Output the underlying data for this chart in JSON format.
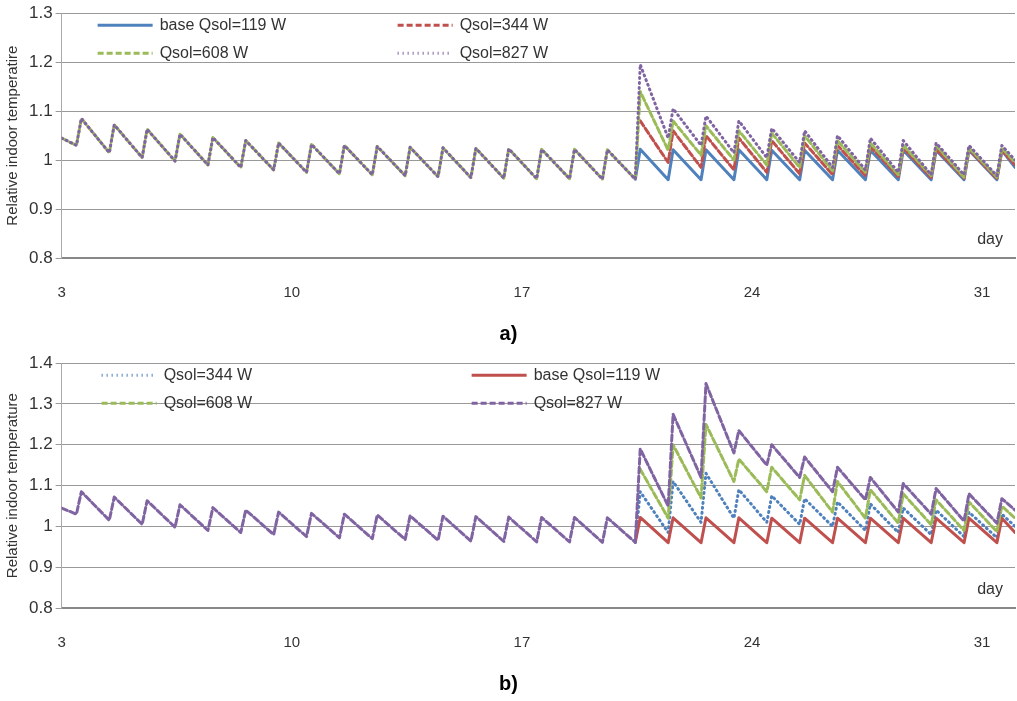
{
  "chart_data": [
    {
      "type": "line",
      "ylabel": "Relative indoor temperatire",
      "xlabel": "day",
      "annotations": [
        "a)"
      ],
      "x": [
        3,
        3.45,
        3.6,
        4.45,
        4.6,
        5.45,
        5.6,
        6.45,
        6.6,
        7.45,
        7.6,
        8.45,
        8.6,
        9.45,
        9.6,
        10.45,
        10.6,
        11.45,
        11.6,
        12.45,
        12.6,
        13.45,
        13.6,
        14.45,
        14.6,
        15.45,
        15.6,
        16.45,
        16.6,
        17.45,
        17.6,
        18.45,
        18.6,
        19.45,
        19.6,
        20.45,
        20.6,
        21.45,
        21.6,
        22.45,
        22.6,
        23.45,
        23.6,
        24.45,
        24.6,
        25.45,
        25.6,
        26.45,
        26.6,
        27.45,
        27.6,
        28.45,
        28.6,
        29.45,
        29.6,
        30.45,
        30.6,
        31.45,
        31.6,
        32
      ],
      "series": [
        {
          "name": "base Qsol=119 W",
          "color": "#4f81bd",
          "line_style": "solid",
          "values": [
            null,
            null,
            null,
            null,
            null,
            null,
            null,
            null,
            null,
            null,
            null,
            null,
            null,
            null,
            null,
            null,
            null,
            null,
            null,
            null,
            null,
            null,
            null,
            null,
            null,
            null,
            null,
            null,
            null,
            null,
            null,
            null,
            null,
            null,
            null,
            0.961,
            1.022,
            0.96,
            1.021,
            0.96,
            1.021,
            0.96,
            1.021,
            0.96,
            1.02,
            0.96,
            1.02,
            0.96,
            1.02,
            0.96,
            1.02,
            0.96,
            1.02,
            0.96,
            1.02,
            0.96,
            1.02,
            0.96,
            1.02,
            0.985
          ]
        },
        {
          "name": "Qsol=344 W",
          "color": "#c0504d",
          "line_style": "dashed",
          "values": [
            null,
            null,
            null,
            null,
            null,
            null,
            null,
            null,
            null,
            null,
            null,
            null,
            null,
            null,
            null,
            null,
            null,
            null,
            null,
            null,
            null,
            null,
            null,
            null,
            null,
            null,
            null,
            null,
            null,
            null,
            null,
            null,
            null,
            null,
            null,
            null,
            1.08,
            0.995,
            1.06,
            0.985,
            1.05,
            0.98,
            1.045,
            0.975,
            1.04,
            0.972,
            1.035,
            0.97,
            1.03,
            0.968,
            1.028,
            0.966,
            1.025,
            0.964,
            1.023,
            0.963,
            1.022,
            0.962,
            1.02,
            0.99
          ]
        },
        {
          "name": "Qsol=608 W",
          "color": "#9bbb59",
          "line_style": "dashed",
          "values": [
            1.045,
            1.03,
            1.085,
            1.015,
            1.072,
            1.005,
            1.063,
            0.998,
            1.053,
            0.99,
            1.046,
            0.985,
            1.04,
            0.98,
            1.035,
            0.975,
            1.032,
            0.972,
            1.03,
            0.97,
            1.028,
            0.968,
            1.026,
            0.966,
            1.025,
            0.964,
            1.024,
            0.963,
            1.023,
            0.962,
            1.022,
            0.962,
            1.022,
            0.961,
            1.021,
            0.961,
            1.14,
            1.02,
            1.08,
            1.01,
            1.07,
            1.0,
            1.06,
            0.99,
            1.055,
            0.985,
            1.05,
            0.978,
            1.04,
            0.975,
            1.035,
            0.97,
            1.03,
            0.968,
            1.03,
            0.965,
            1.025,
            0.965,
            1.025,
            0.995
          ]
        },
        {
          "name": "Qsol=827 W",
          "color": "#8064a2",
          "line_style": "dotted",
          "values": [
            1.045,
            1.03,
            1.085,
            1.015,
            1.072,
            1.005,
            1.063,
            0.998,
            1.053,
            0.99,
            1.046,
            0.985,
            1.04,
            0.98,
            1.035,
            0.975,
            1.032,
            0.972,
            1.03,
            0.97,
            1.028,
            0.968,
            1.026,
            0.966,
            1.025,
            0.964,
            1.024,
            0.963,
            1.023,
            0.962,
            1.022,
            0.962,
            1.022,
            0.961,
            1.021,
            0.961,
            1.195,
            1.045,
            1.105,
            1.03,
            1.09,
            1.015,
            1.08,
            1.005,
            1.065,
            0.995,
            1.06,
            0.985,
            1.05,
            0.98,
            1.045,
            0.975,
            1.04,
            0.97,
            1.035,
            0.97,
            1.03,
            0.968,
            1.03,
            1.0
          ]
        }
      ],
      "xlim": [
        3,
        32
      ],
      "xticks": [
        3,
        10,
        17,
        24,
        31
      ],
      "ylim": [
        0.8,
        1.3
      ],
      "yticks": [
        0.8,
        0.9,
        1,
        1.1,
        1.2,
        1.3
      ],
      "grid": "y",
      "legend": "top left"
    },
    {
      "type": "line",
      "ylabel": "Relative indoor temperature",
      "xlabel": "day",
      "annotations": [
        "b)"
      ],
      "x": [
        3,
        3.45,
        3.6,
        4.45,
        4.6,
        5.45,
        5.6,
        6.45,
        6.6,
        7.45,
        7.6,
        8.45,
        8.6,
        9.45,
        9.6,
        10.45,
        10.6,
        11.45,
        11.6,
        12.45,
        12.6,
        13.45,
        13.6,
        14.45,
        14.6,
        15.45,
        15.6,
        16.45,
        16.6,
        17.45,
        17.6,
        18.45,
        18.6,
        19.45,
        19.6,
        20.45,
        20.6,
        21.45,
        21.6,
        22.45,
        22.6,
        23.45,
        23.6,
        24.45,
        24.6,
        25.45,
        25.6,
        26.45,
        26.6,
        27.45,
        27.6,
        28.45,
        28.6,
        29.45,
        29.6,
        30.45,
        30.6,
        31.45,
        31.6,
        32
      ],
      "series": [
        {
          "name": "Qsol=344 W",
          "color": "#4f81bd",
          "line_style": "dotted",
          "values": [
            null,
            null,
            null,
            null,
            null,
            null,
            null,
            null,
            null,
            null,
            null,
            null,
            null,
            null,
            null,
            null,
            null,
            null,
            null,
            null,
            null,
            null,
            null,
            null,
            null,
            null,
            null,
            null,
            null,
            null,
            null,
            null,
            null,
            null,
            null,
            0.961,
            1.085,
            0.985,
            1.11,
            1.01,
            1.13,
            1.02,
            1.09,
            1.01,
            1.075,
            1.005,
            1.068,
            1.0,
            1.06,
            0.99,
            1.055,
            0.985,
            1.045,
            0.98,
            1.04,
            0.975,
            1.035,
            0.972,
            1.03,
            1.0
          ]
        },
        {
          "name": "base Qsol=119 W",
          "color": "#c0504d",
          "line_style": "solid",
          "values": [
            null,
            null,
            null,
            null,
            null,
            null,
            null,
            null,
            null,
            null,
            null,
            null,
            null,
            null,
            null,
            null,
            null,
            null,
            null,
            null,
            null,
            null,
            null,
            null,
            null,
            null,
            null,
            null,
            null,
            null,
            null,
            null,
            null,
            null,
            null,
            0.961,
            1.022,
            0.96,
            1.021,
            0.96,
            1.021,
            0.96,
            1.021,
            0.96,
            1.02,
            0.96,
            1.02,
            0.96,
            1.02,
            0.96,
            1.02,
            0.96,
            1.02,
            0.96,
            1.02,
            0.96,
            1.02,
            0.96,
            1.02,
            0.985
          ]
        },
        {
          "name": "Qsol=608 W",
          "color": "#9bbb59",
          "line_style": "dashed",
          "values": [
            null,
            null,
            null,
            null,
            null,
            null,
            null,
            null,
            null,
            null,
            null,
            null,
            null,
            null,
            null,
            null,
            null,
            null,
            null,
            null,
            null,
            null,
            null,
            null,
            null,
            null,
            null,
            null,
            null,
            null,
            null,
            null,
            null,
            null,
            null,
            null,
            1.14,
            1.02,
            1.2,
            1.07,
            1.25,
            1.11,
            1.165,
            1.085,
            1.145,
            1.065,
            1.125,
            1.035,
            1.11,
            1.02,
            1.09,
            1.008,
            1.08,
            1.004,
            1.065,
            0.99,
            1.06,
            0.987,
            1.05,
            1.02
          ]
        },
        {
          "name": "Qsol=827 W",
          "color": "#8064a2",
          "line_style": "dashed",
          "values": [
            1.045,
            1.03,
            1.085,
            1.015,
            1.072,
            1.005,
            1.063,
            0.998,
            1.053,
            0.99,
            1.046,
            0.985,
            1.04,
            0.98,
            1.035,
            0.975,
            1.032,
            0.972,
            1.03,
            0.97,
            1.028,
            0.968,
            1.026,
            0.966,
            1.025,
            0.964,
            1.024,
            0.963,
            1.023,
            0.962,
            1.022,
            0.962,
            1.022,
            0.961,
            1.021,
            0.961,
            1.19,
            1.05,
            1.275,
            1.12,
            1.35,
            1.18,
            1.235,
            1.15,
            1.2,
            1.12,
            1.17,
            1.085,
            1.145,
            1.065,
            1.12,
            1.035,
            1.105,
            1.03,
            1.093,
            1.013,
            1.08,
            1.008,
            1.068,
            1.04
          ]
        }
      ],
      "xlim": [
        3,
        32
      ],
      "xticks": [
        3,
        10,
        17,
        24,
        31
      ],
      "ylim": [
        0.8,
        1.4
      ],
      "yticks": [
        0.8,
        0.9,
        1,
        1.1,
        1.2,
        1.3,
        1.4
      ],
      "grid": "y",
      "legend": "top"
    }
  ]
}
